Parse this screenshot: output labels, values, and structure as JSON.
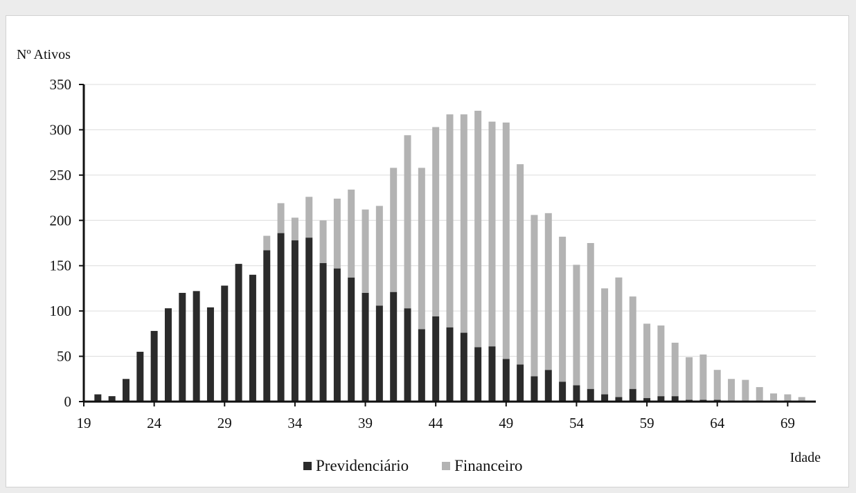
{
  "chart_data": {
    "type": "bar",
    "stacked": true,
    "ylabel": "Nº Ativos",
    "xlabel": "Idade",
    "ylim": [
      0,
      350
    ],
    "yticks": [
      0,
      50,
      100,
      150,
      200,
      250,
      300,
      350
    ],
    "xticks": [
      19,
      24,
      29,
      34,
      39,
      44,
      49,
      54,
      59,
      64,
      69
    ],
    "grid": true,
    "legend_position": "bottom",
    "x": [
      19,
      20,
      21,
      22,
      23,
      24,
      25,
      26,
      27,
      28,
      29,
      30,
      31,
      32,
      33,
      34,
      35,
      36,
      37,
      38,
      39,
      40,
      41,
      42,
      43,
      44,
      45,
      46,
      47,
      48,
      49,
      50,
      51,
      52,
      53,
      54,
      55,
      56,
      57,
      58,
      59,
      60,
      61,
      62,
      63,
      64,
      65,
      66,
      67,
      68,
      69,
      70
    ],
    "series": [
      {
        "name": "Previdenciário",
        "color": "#2b2b2b",
        "values": [
          0,
          8,
          6,
          25,
          55,
          78,
          103,
          120,
          122,
          104,
          128,
          152,
          140,
          167,
          186,
          178,
          181,
          153,
          147,
          137,
          120,
          106,
          121,
          103,
          80,
          94,
          82,
          76,
          60,
          61,
          47,
          41,
          28,
          35,
          22,
          18,
          14,
          8,
          5,
          14,
          4,
          6,
          6,
          2,
          2,
          2,
          1,
          0,
          0,
          0,
          0,
          0
        ]
      },
      {
        "name": "Financeiro",
        "color": "#b3b3b3",
        "values": [
          0,
          0,
          0,
          0,
          0,
          0,
          0,
          0,
          0,
          0,
          0,
          0,
          0,
          16,
          33,
          25,
          45,
          47,
          77,
          97,
          92,
          110,
          137,
          191,
          178,
          209,
          235,
          241,
          261,
          248,
          261,
          221,
          178,
          173,
          160,
          133,
          161,
          117,
          132,
          102,
          82,
          78,
          59,
          47,
          50,
          33,
          24,
          24,
          16,
          9,
          8,
          5
        ]
      }
    ]
  }
}
